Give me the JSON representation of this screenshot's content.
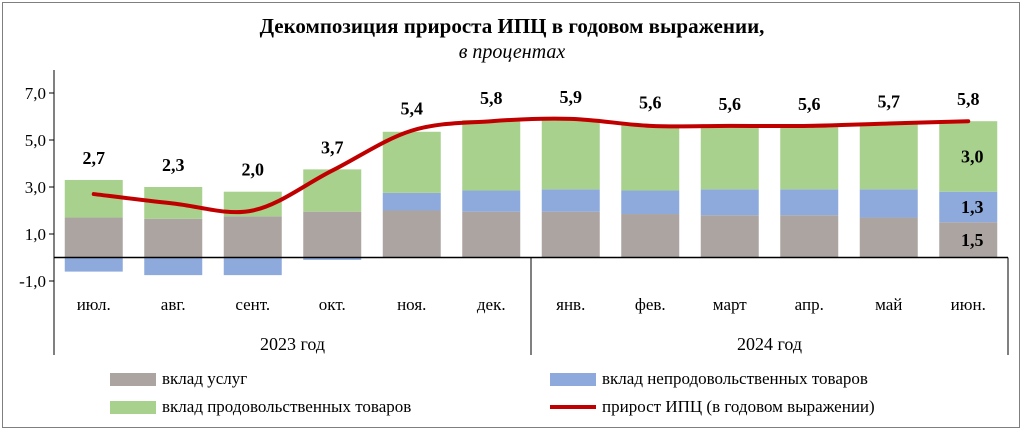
{
  "chart_data": {
    "type": "bar",
    "title": "Декомпозиция прироста ИПЦ  в годовом выражении,",
    "subtitle": "в процентах",
    "categories": [
      "июл.",
      "авг.",
      "сент.",
      "окт.",
      "ноя.",
      "дек.",
      "янв.",
      "фев.",
      "март",
      "апр.",
      "май",
      "июн."
    ],
    "year_groups": [
      {
        "label": "2023 год",
        "count": 6
      },
      {
        "label": "2024 год",
        "count": 6
      }
    ],
    "yticks": [
      "7,0",
      "5,0",
      "3,0",
      "1,0",
      "-1,0"
    ],
    "ytick_values": [
      7,
      5,
      3,
      1,
      -1
    ],
    "ylim": [
      -1.9,
      8.1
    ],
    "stacked": true,
    "series": [
      {
        "name": "вклад услуг",
        "color": "#aca4a1",
        "values": [
          1.7,
          1.65,
          1.75,
          1.95,
          2.0,
          1.95,
          1.95,
          1.85,
          1.8,
          1.8,
          1.7,
          1.5
        ]
      },
      {
        "name": "вклад непродовольственных товаров",
        "color": "#8eaadc",
        "values": [
          -0.6,
          -0.75,
          -0.75,
          -0.1,
          0.75,
          0.9,
          0.95,
          1.0,
          1.1,
          1.1,
          1.2,
          1.3
        ]
      },
      {
        "name": "вклад продовольственных товаров",
        "color": "#a9d18e",
        "values": [
          1.6,
          1.35,
          1.05,
          1.8,
          2.6,
          3.0,
          3.0,
          2.8,
          2.7,
          2.7,
          2.8,
          3.0
        ]
      }
    ],
    "line": {
      "name": "прирост ИПЦ (в годовом выражении)",
      "color": "#c00000",
      "values": [
        2.7,
        2.3,
        2.0,
        3.7,
        5.4,
        5.8,
        5.9,
        5.6,
        5.6,
        5.6,
        5.7,
        5.8
      ]
    },
    "total_labels": [
      "2,7",
      "2,3",
      "2,0",
      "3,7",
      "5,4",
      "5,8",
      "5,9",
      "5,6",
      "5,6",
      "5,6",
      "5,7",
      "5,8"
    ],
    "last_bar_labels": [
      "1,5",
      "1,3",
      "3,0"
    ],
    "grid": false,
    "legend_position": "bottom"
  }
}
